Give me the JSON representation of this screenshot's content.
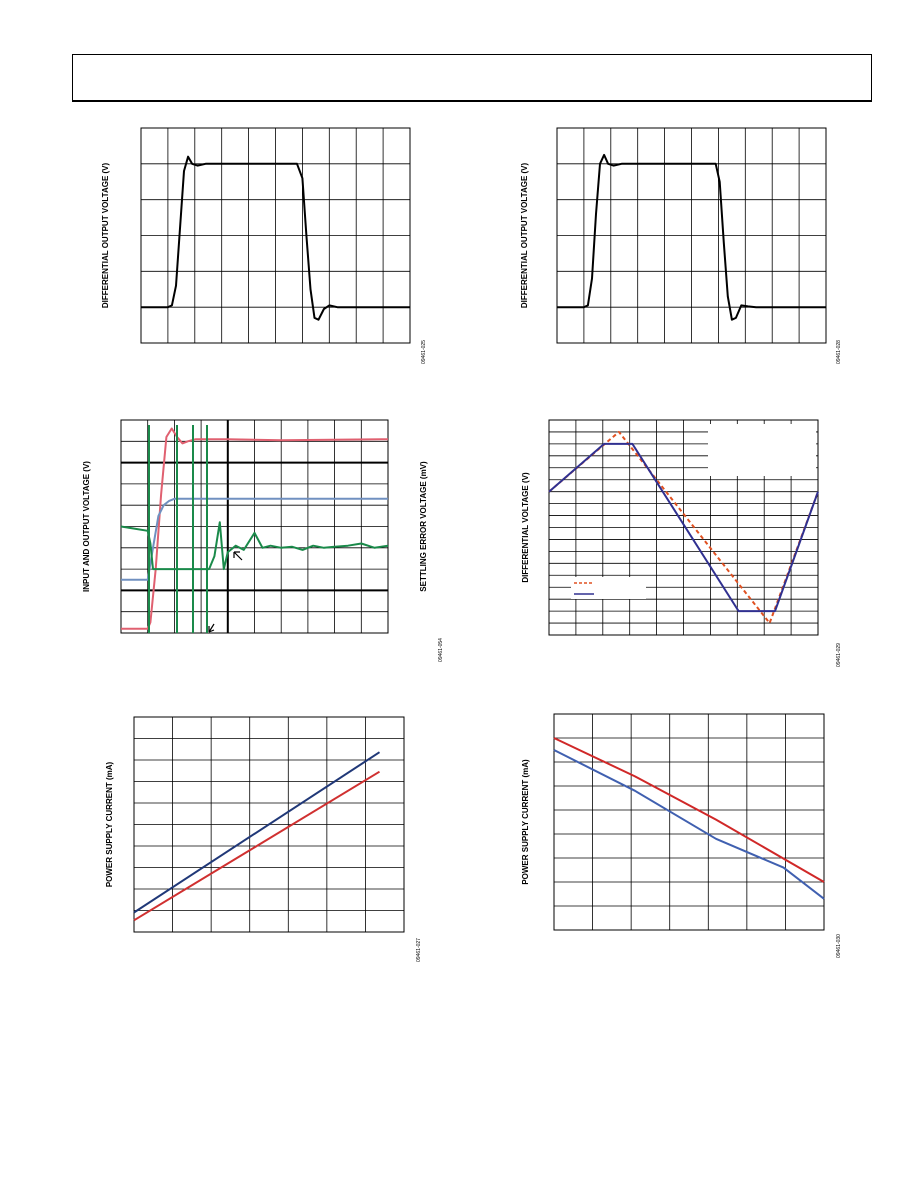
{
  "page": {
    "header": ""
  },
  "figures": [
    {
      "ylabel": "DIFFERENTIAL OUTPUT VOLTAGE (V)",
      "figure_id": "09461-025"
    },
    {
      "ylabel": "DIFFERENTIAL OUTPUT VOLTAGE (V)",
      "figure_id": "09461-028"
    },
    {
      "ylabel": "INPUT AND OUTPUT VOLTAGE (V)",
      "ylabel_right": "SETTLING ERROR VOLTAGE (mV)",
      "figure_id": "09461-054"
    },
    {
      "ylabel": "DIFFERENTIAL VOLTAGE (V)",
      "figure_id": "09461-029"
    },
    {
      "ylabel": "POWER SUPPLY CURRENT (mA)",
      "figure_id": "09461-027"
    },
    {
      "ylabel": "POWER SUPPLY CURRENT (mA)",
      "figure_id": "09461-030"
    }
  ],
  "chart_data": [
    {
      "type": "line",
      "description_of_axes": "unlabeled ticks",
      "series": [
        {
          "color": "#000000",
          "x": [
            0,
            1,
            1.15,
            1.3,
            1.45,
            1.6,
            1.75,
            1.9,
            2.1,
            2.4,
            3,
            4,
            5,
            5.8,
            6.0,
            6.15,
            6.3,
            6.45,
            6.6,
            6.8,
            7.0,
            7.3,
            7.6,
            8,
            10
          ],
          "y": [
            0,
            0,
            0.05,
            0.6,
            2.2,
            3.8,
            4.2,
            4.0,
            3.95,
            4.0,
            4.0,
            4.0,
            4.0,
            4.0,
            3.6,
            2.0,
            0.5,
            -0.3,
            -0.35,
            -0.05,
            0.05,
            0.0,
            0.0,
            0.0,
            0.0
          ]
        }
      ],
      "xlim": [
        0,
        10
      ],
      "ylim": [
        -1,
        5
      ],
      "grid": true
    },
    {
      "type": "line",
      "series": [
        {
          "color": "#000000",
          "x": [
            0,
            1,
            1.15,
            1.3,
            1.45,
            1.6,
            1.75,
            1.9,
            2.1,
            2.4,
            3,
            4,
            5,
            5.9,
            6.05,
            6.2,
            6.35,
            6.5,
            6.65,
            6.85,
            7.1,
            7.4,
            8,
            10
          ],
          "y": [
            0,
            0,
            0.05,
            0.8,
            2.6,
            4.0,
            4.25,
            4.0,
            3.95,
            4.0,
            4.0,
            4.0,
            4.0,
            4.0,
            3.5,
            1.8,
            0.3,
            -0.35,
            -0.3,
            0.05,
            0.02,
            0.0,
            0.0,
            0.0
          ]
        }
      ],
      "xlim": [
        0,
        10
      ],
      "ylim": [
        -1,
        5
      ],
      "grid": true
    },
    {
      "type": "line",
      "series": [
        {
          "color": "#e06070",
          "x": [
            0,
            1.0,
            1.1,
            1.3,
            1.5,
            1.7,
            1.9,
            2.1,
            2.3,
            2.5,
            2.8,
            3.2,
            4,
            6,
            10
          ],
          "y": [
            0.2,
            0.2,
            0.5,
            3.0,
            6.5,
            9.2,
            9.6,
            9.2,
            8.9,
            9.0,
            9.1,
            9.1,
            9.1,
            9.05,
            9.1
          ]
        },
        {
          "color": "#7090c0",
          "x": [
            0,
            1.0,
            1.2,
            1.4,
            1.6,
            1.8,
            2.0,
            2.3,
            3,
            5,
            10
          ],
          "y": [
            2.5,
            2.5,
            4.0,
            5.5,
            6.0,
            6.2,
            6.3,
            6.3,
            6.3,
            6.3,
            6.3
          ]
        },
        {
          "color": "#1a8a4a",
          "x": [
            0,
            0.5,
            1.0,
            1.1,
            1.2,
            1.4,
            3.3,
            3.5,
            3.7,
            3.85,
            4.0,
            4.3,
            4.6,
            5.0,
            5.3,
            5.6,
            6.0,
            6.4,
            6.8,
            7.2,
            7.6,
            8.0,
            8.5,
            9.0,
            9.5,
            10
          ],
          "y": [
            5.0,
            4.9,
            4.8,
            4.2,
            3.0,
            3.0,
            3.0,
            3.6,
            5.2,
            3.0,
            3.8,
            4.1,
            3.9,
            4.7,
            4.0,
            4.1,
            4.0,
            4.05,
            3.9,
            4.1,
            4.0,
            4.05,
            4.1,
            4.2,
            4.0,
            4.1
          ]
        }
      ],
      "xlim": [
        0,
        10
      ],
      "ylim": [
        0,
        10
      ],
      "grid": true
    },
    {
      "type": "line",
      "series": [
        {
          "name": "",
          "color": "#e05020",
          "dash": true,
          "x": [
            0,
            2.6,
            8.2,
            10
          ],
          "y": [
            6,
            11,
            -5,
            6
          ]
        },
        {
          "name": "",
          "color": "#303090",
          "x": [
            0,
            2.05,
            3.1,
            7.05,
            8.4,
            10
          ],
          "y": [
            6,
            10,
            10,
            -4,
            -4,
            6
          ]
        }
      ],
      "xlim": [
        0,
        10
      ],
      "ylim": [
        -6,
        12
      ],
      "grid": true
    },
    {
      "type": "line",
      "series": [
        {
          "color": "#203878",
          "x": [
            0,
            10
          ],
          "y": [
            0.0,
            8.2
          ]
        },
        {
          "color": "#d03030",
          "x": [
            0,
            10
          ],
          "y": [
            -0.4,
            7.2
          ]
        }
      ],
      "xlim": [
        0,
        11
      ],
      "ylim": [
        -1,
        10
      ],
      "grid": true
    },
    {
      "type": "line",
      "series": [
        {
          "color": "#d02828",
          "x": [
            0,
            3,
            6,
            10
          ],
          "y": [
            8.0,
            6.4,
            4.6,
            2.0
          ]
        },
        {
          "color": "#4060b0",
          "x": [
            0,
            3,
            6,
            8.5,
            10
          ],
          "y": [
            7.5,
            5.8,
            3.8,
            2.6,
            1.3
          ]
        }
      ],
      "xlim": [
        0,
        10
      ],
      "ylim": [
        0,
        9
      ],
      "grid": true
    }
  ]
}
